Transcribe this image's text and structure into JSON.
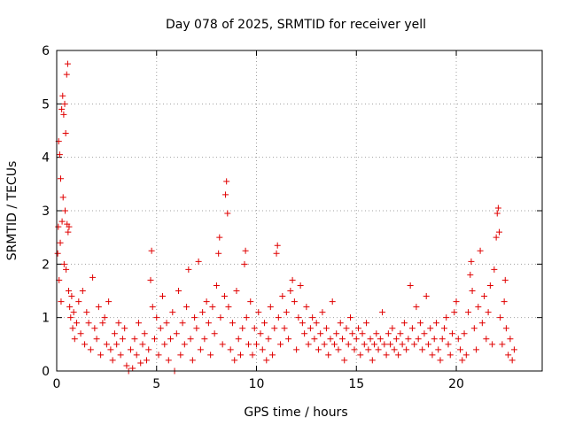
{
  "chart_data": {
    "type": "scatter",
    "title": "Day 078 of 2025, SRMTID for receiver yell",
    "xlabel": "GPS time / hours",
    "ylabel": "SRMTID / TECUs",
    "xlim": [
      0,
      24.3
    ],
    "ylim": [
      0,
      6
    ],
    "xticks": [
      "0",
      "5",
      "10",
      "15",
      "20"
    ],
    "yticks": [
      "0",
      "1",
      "2",
      "3",
      "4",
      "5",
      "6"
    ],
    "grid": true,
    "marker": "+",
    "color": "#e00000",
    "series": [
      {
        "name": "SRMTID",
        "points": [
          [
            0.05,
            2.2
          ],
          [
            0.08,
            2.7
          ],
          [
            0.1,
            4.3
          ],
          [
            0.12,
            1.7
          ],
          [
            0.15,
            4.05
          ],
          [
            0.18,
            2.4
          ],
          [
            0.2,
            3.6
          ],
          [
            0.22,
            1.3
          ],
          [
            0.25,
            4.9
          ],
          [
            0.27,
            2.8
          ],
          [
            0.3,
            5.15
          ],
          [
            0.32,
            3.25
          ],
          [
            0.35,
            4.8
          ],
          [
            0.37,
            2.0
          ],
          [
            0.4,
            5.0
          ],
          [
            0.42,
            3.0
          ],
          [
            0.45,
            4.45
          ],
          [
            0.47,
            1.9
          ],
          [
            0.5,
            5.55
          ],
          [
            0.52,
            2.75
          ],
          [
            0.55,
            5.75
          ],
          [
            0.57,
            2.6
          ],
          [
            0.6,
            1.5
          ],
          [
            0.62,
            2.7
          ],
          [
            0.65,
            1.2
          ],
          [
            0.7,
            1.0
          ],
          [
            0.75,
            1.4
          ],
          [
            0.8,
            0.8
          ],
          [
            0.85,
            1.1
          ],
          [
            0.9,
            0.6
          ],
          [
            1.0,
            0.9
          ],
          [
            1.1,
            1.3
          ],
          [
            1.2,
            0.7
          ],
          [
            1.3,
            1.5
          ],
          [
            1.4,
            0.5
          ],
          [
            1.5,
            1.1
          ],
          [
            1.6,
            0.9
          ],
          [
            1.7,
            0.4
          ],
          [
            1.8,
            1.75
          ],
          [
            1.9,
            0.8
          ],
          [
            2.0,
            0.6
          ],
          [
            2.1,
            1.2
          ],
          [
            2.2,
            0.3
          ],
          [
            2.3,
            0.9
          ],
          [
            2.4,
            1.0
          ],
          [
            2.5,
            0.5
          ],
          [
            2.6,
            1.3
          ],
          [
            2.7,
            0.4
          ],
          [
            2.8,
            0.2
          ],
          [
            2.9,
            0.7
          ],
          [
            3.0,
            0.5
          ],
          [
            3.1,
            0.9
          ],
          [
            3.2,
            0.3
          ],
          [
            3.3,
            0.6
          ],
          [
            3.4,
            0.8
          ],
          [
            3.5,
            0.1
          ],
          [
            3.6,
            0.0
          ],
          [
            3.7,
            0.4
          ],
          [
            3.8,
            0.05
          ],
          [
            3.9,
            0.6
          ],
          [
            4.0,
            0.3
          ],
          [
            4.1,
            0.9
          ],
          [
            4.2,
            0.15
          ],
          [
            4.3,
            0.5
          ],
          [
            4.4,
            0.7
          ],
          [
            4.5,
            0.2
          ],
          [
            4.6,
            0.4
          ],
          [
            4.7,
            1.7
          ],
          [
            4.75,
            2.25
          ],
          [
            4.8,
            1.2
          ],
          [
            4.9,
            0.6
          ],
          [
            5.0,
            1.0
          ],
          [
            5.1,
            0.3
          ],
          [
            5.2,
            0.8
          ],
          [
            5.3,
            1.4
          ],
          [
            5.4,
            0.5
          ],
          [
            5.5,
            0.9
          ],
          [
            5.6,
            0.2
          ],
          [
            5.7,
            0.6
          ],
          [
            5.8,
            1.1
          ],
          [
            5.9,
            0.0
          ],
          [
            6.0,
            0.7
          ],
          [
            6.1,
            1.5
          ],
          [
            6.2,
            0.3
          ],
          [
            6.3,
            0.9
          ],
          [
            6.4,
            0.5
          ],
          [
            6.5,
            1.2
          ],
          [
            6.6,
            1.9
          ],
          [
            6.7,
            0.6
          ],
          [
            6.8,
            0.2
          ],
          [
            6.9,
            1.0
          ],
          [
            7.0,
            0.8
          ],
          [
            7.1,
            2.05
          ],
          [
            7.2,
            0.4
          ],
          [
            7.3,
            1.1
          ],
          [
            7.4,
            0.6
          ],
          [
            7.5,
            1.3
          ],
          [
            7.6,
            0.9
          ],
          [
            7.7,
            0.3
          ],
          [
            7.8,
            1.2
          ],
          [
            7.9,
            0.7
          ],
          [
            8.0,
            1.6
          ],
          [
            8.1,
            2.2
          ],
          [
            8.15,
            2.5
          ],
          [
            8.2,
            1.0
          ],
          [
            8.3,
            0.5
          ],
          [
            8.4,
            1.4
          ],
          [
            8.45,
            3.3
          ],
          [
            8.5,
            3.55
          ],
          [
            8.55,
            2.95
          ],
          [
            8.6,
            1.2
          ],
          [
            8.7,
            0.4
          ],
          [
            8.8,
            0.9
          ],
          [
            8.9,
            0.2
          ],
          [
            9.0,
            1.5
          ],
          [
            9.1,
            0.6
          ],
          [
            9.2,
            0.3
          ],
          [
            9.3,
            0.8
          ],
          [
            9.4,
            2.0
          ],
          [
            9.45,
            2.25
          ],
          [
            9.5,
            1.0
          ],
          [
            9.6,
            0.5
          ],
          [
            9.7,
            1.3
          ],
          [
            9.8,
            0.3
          ],
          [
            9.9,
            0.8
          ],
          [
            10.0,
            0.5
          ],
          [
            10.1,
            1.1
          ],
          [
            10.2,
            0.7
          ],
          [
            10.3,
            0.4
          ],
          [
            10.4,
            0.9
          ],
          [
            10.5,
            0.2
          ],
          [
            10.6,
            0.6
          ],
          [
            10.7,
            1.2
          ],
          [
            10.8,
            0.3
          ],
          [
            10.9,
            0.8
          ],
          [
            11.0,
            2.2
          ],
          [
            11.05,
            2.35
          ],
          [
            11.1,
            1.0
          ],
          [
            11.2,
            0.5
          ],
          [
            11.3,
            1.4
          ],
          [
            11.4,
            0.8
          ],
          [
            11.5,
            1.1
          ],
          [
            11.6,
            0.6
          ],
          [
            11.7,
            1.5
          ],
          [
            11.8,
            1.7
          ],
          [
            11.9,
            1.3
          ],
          [
            12.0,
            0.4
          ],
          [
            12.1,
            1.0
          ],
          [
            12.2,
            1.6
          ],
          [
            12.3,
            0.9
          ],
          [
            12.4,
            0.7
          ],
          [
            12.5,
            1.2
          ],
          [
            12.6,
            0.5
          ],
          [
            12.7,
            0.8
          ],
          [
            12.8,
            1.0
          ],
          [
            12.9,
            0.6
          ],
          [
            13.0,
            0.9
          ],
          [
            13.1,
            0.4
          ],
          [
            13.2,
            0.7
          ],
          [
            13.3,
            1.1
          ],
          [
            13.4,
            0.5
          ],
          [
            13.5,
            0.8
          ],
          [
            13.6,
            0.3
          ],
          [
            13.7,
            0.6
          ],
          [
            13.8,
            1.3
          ],
          [
            13.9,
            0.5
          ],
          [
            14.0,
            0.7
          ],
          [
            14.1,
            0.4
          ],
          [
            14.2,
            0.9
          ],
          [
            14.3,
            0.6
          ],
          [
            14.4,
            0.2
          ],
          [
            14.5,
            0.8
          ],
          [
            14.6,
            0.5
          ],
          [
            14.7,
            1.0
          ],
          [
            14.8,
            0.7
          ],
          [
            14.9,
            0.4
          ],
          [
            15.0,
            0.6
          ],
          [
            15.1,
            0.8
          ],
          [
            15.2,
            0.3
          ],
          [
            15.3,
            0.7
          ],
          [
            15.4,
            0.5
          ],
          [
            15.5,
            0.9
          ],
          [
            15.6,
            0.4
          ],
          [
            15.7,
            0.6
          ],
          [
            15.8,
            0.2
          ],
          [
            15.9,
            0.5
          ],
          [
            16.0,
            0.7
          ],
          [
            16.1,
            0.4
          ],
          [
            16.2,
            0.6
          ],
          [
            16.3,
            1.1
          ],
          [
            16.4,
            0.5
          ],
          [
            16.5,
            0.3
          ],
          [
            16.6,
            0.7
          ],
          [
            16.7,
            0.5
          ],
          [
            16.8,
            0.8
          ],
          [
            16.9,
            0.4
          ],
          [
            17.0,
            0.6
          ],
          [
            17.1,
            0.3
          ],
          [
            17.2,
            0.7
          ],
          [
            17.3,
            0.5
          ],
          [
            17.4,
            0.9
          ],
          [
            17.5,
            0.4
          ],
          [
            17.6,
            0.6
          ],
          [
            17.7,
            1.6
          ],
          [
            17.8,
            0.8
          ],
          [
            17.9,
            0.5
          ],
          [
            18.0,
            1.2
          ],
          [
            18.1,
            0.6
          ],
          [
            18.2,
            0.9
          ],
          [
            18.3,
            0.4
          ],
          [
            18.4,
            0.7
          ],
          [
            18.5,
            1.4
          ],
          [
            18.6,
            0.5
          ],
          [
            18.7,
            0.8
          ],
          [
            18.8,
            0.3
          ],
          [
            18.9,
            0.6
          ],
          [
            19.0,
            0.9
          ],
          [
            19.1,
            0.4
          ],
          [
            19.2,
            0.2
          ],
          [
            19.3,
            0.6
          ],
          [
            19.4,
            0.8
          ],
          [
            19.5,
            1.0
          ],
          [
            19.6,
            0.5
          ],
          [
            19.7,
            0.3
          ],
          [
            19.8,
            0.7
          ],
          [
            19.9,
            1.1
          ],
          [
            20.0,
            1.3
          ],
          [
            20.1,
            0.6
          ],
          [
            20.2,
            0.4
          ],
          [
            20.3,
            0.2
          ],
          [
            20.4,
            0.7
          ],
          [
            20.5,
            0.3
          ],
          [
            20.6,
            1.1
          ],
          [
            20.7,
            1.8
          ],
          [
            20.75,
            2.05
          ],
          [
            20.8,
            1.5
          ],
          [
            20.9,
            0.8
          ],
          [
            21.0,
            0.4
          ],
          [
            21.1,
            1.2
          ],
          [
            21.2,
            2.25
          ],
          [
            21.3,
            0.9
          ],
          [
            21.4,
            1.4
          ],
          [
            21.5,
            0.6
          ],
          [
            21.6,
            1.1
          ],
          [
            21.7,
            1.6
          ],
          [
            21.8,
            0.5
          ],
          [
            21.9,
            1.9
          ],
          [
            22.0,
            2.5
          ],
          [
            22.05,
            2.95
          ],
          [
            22.1,
            3.05
          ],
          [
            22.15,
            2.6
          ],
          [
            22.2,
            1.0
          ],
          [
            22.3,
            0.5
          ],
          [
            22.4,
            1.3
          ],
          [
            22.45,
            1.7
          ],
          [
            22.5,
            0.8
          ],
          [
            22.6,
            0.3
          ],
          [
            22.7,
            0.6
          ],
          [
            22.8,
            0.2
          ],
          [
            22.9,
            0.4
          ]
        ]
      }
    ]
  }
}
